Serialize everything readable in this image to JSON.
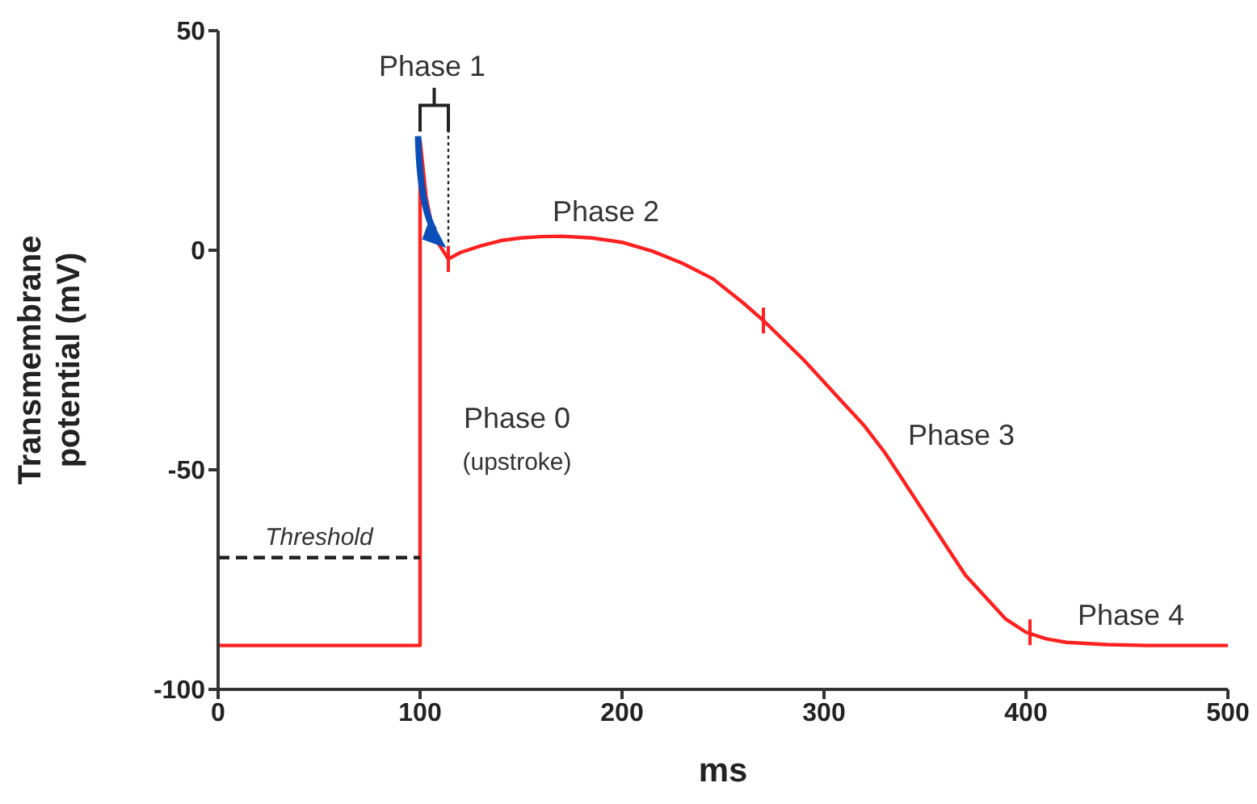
{
  "chart_data": {
    "type": "line",
    "xlabel": "ms",
    "ylabel": "Transmembrane potential (mV)",
    "xlim": [
      0,
      500
    ],
    "xticks": [
      0,
      100,
      200,
      300,
      400,
      500
    ],
    "ylim": [
      -100,
      50
    ],
    "yticks": [
      -100,
      -50,
      0,
      50
    ],
    "marker": "none",
    "series": [
      {
        "color": "#ff2020",
        "line_style": "solid",
        "x": [
          0,
          100,
          100,
          103,
          107,
          114,
          120,
          130,
          140,
          150,
          160,
          170,
          185,
          200,
          215,
          230,
          245,
          260,
          270,
          280,
          290,
          300,
          310,
          320,
          330,
          340,
          350,
          360,
          370,
          380,
          390,
          400,
          410,
          420,
          440,
          460,
          500
        ],
        "values": [
          -90,
          -90,
          25,
          12,
          3,
          -2,
          -0.5,
          1,
          2.2,
          2.8,
          3.1,
          3.2,
          2.8,
          1.8,
          -0.2,
          -3,
          -6.5,
          -12,
          -16,
          -20.5,
          -25,
          -30,
          -35,
          -40,
          -46,
          -53,
          -60,
          -67,
          -74,
          -79,
          -84,
          -87,
          -88.5,
          -89.3,
          -89.8,
          -90,
          -90
        ]
      },
      {
        "name": "Threshold",
        "color": "#222222",
        "line_style": "dashed",
        "x": [
          0,
          100
        ],
        "values": [
          -70,
          -70
        ]
      }
    ],
    "annotations": [
      "Phase 1",
      "Phase 2",
      "Phase 0",
      "(upstroke)",
      "Phase 3",
      "Phase 4"
    ]
  }
}
